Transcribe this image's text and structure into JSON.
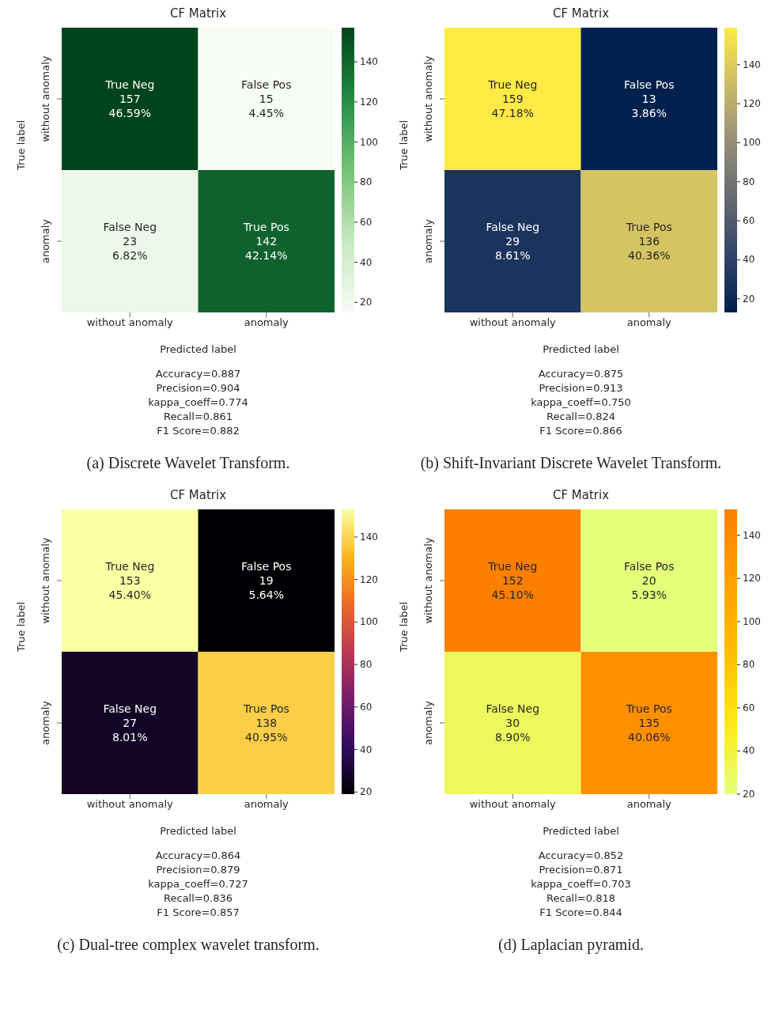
{
  "chart_data": [
    {
      "type": "heatmap",
      "title": "CF Matrix",
      "xlabel": "Predicted label",
      "ylabel": "True label",
      "categories": [
        "without anomaly",
        "anomaly"
      ],
      "y_categories": [
        "without anomaly",
        "anomaly"
      ],
      "cells": [
        [
          157,
          15
        ],
        [
          23,
          142
        ]
      ],
      "cell_labels": [
        [
          "True Neg\n157\n46.59%",
          "False Pos\n15\n4.45%"
        ],
        [
          "False Neg\n23\n6.82%",
          "True Pos\n142\n42.14%"
        ]
      ],
      "clim": [
        15,
        157
      ],
      "cticks": [
        20,
        40,
        60,
        80,
        100,
        120,
        140
      ],
      "colors": [
        "#f7fcf5",
        "#c7e9c0",
        "#74c476",
        "#238b45",
        "#00441b"
      ],
      "annotations": [
        "Accuracy=0.887",
        "Precision=0.904",
        "kappa_coeff=0.774",
        "Recall=0.861",
        "F1 Score=0.882",
        "(a) Discrete Wavelet Transform."
      ]
    },
    {
      "type": "heatmap",
      "title": "CF Matrix",
      "xlabel": "Predicted label",
      "ylabel": "True label",
      "categories": [
        "without anomaly",
        "anomaly"
      ],
      "y_categories": [
        "without anomaly",
        "anomaly"
      ],
      "cells": [
        [
          159,
          13
        ],
        [
          29,
          136
        ]
      ],
      "cell_labels": [
        [
          "True Neg\n159\n47.18%",
          "False Pos\n13\n3.86%"
        ],
        [
          "False Neg\n29\n8.61%",
          "True Pos\n136\n40.36%"
        ]
      ],
      "clim": [
        13,
        159
      ],
      "cticks": [
        20,
        40,
        60,
        80,
        100,
        120,
        140
      ],
      "colors": [
        "#00204d",
        "#31446b",
        "#666970",
        "#958f78",
        "#cbba69",
        "#ffea46"
      ],
      "annotations": [
        "Accuracy=0.875",
        "Precision=0.913",
        "kappa_coeff=0.750",
        "Recall=0.824",
        "F1 Score=0.866",
        "(b) Shift-Invariant Discrete Wavelet Transform."
      ]
    },
    {
      "type": "heatmap",
      "title": "CF Matrix",
      "xlabel": "Predicted label",
      "ylabel": "True label",
      "categories": [
        "without anomaly",
        "anomaly"
      ],
      "y_categories": [
        "without anomaly",
        "anomaly"
      ],
      "cells": [
        [
          153,
          19
        ],
        [
          27,
          138
        ]
      ],
      "cell_labels": [
        [
          "True Neg\n153\n45.40%",
          "False Pos\n19\n5.64%"
        ],
        [
          "False Neg\n27\n8.01%",
          "True Pos\n138\n40.95%"
        ]
      ],
      "clim": [
        19,
        153
      ],
      "cticks": [
        20,
        40,
        60,
        80,
        100,
        120,
        140
      ],
      "colors": [
        "#000004",
        "#320a5e",
        "#781c6d",
        "#bc3754",
        "#ed6925",
        "#fbb61a",
        "#fcffa4"
      ],
      "annotations": [
        "Accuracy=0.864",
        "Precision=0.879",
        "kappa_coeff=0.727",
        "Recall=0.836",
        "F1 Score=0.857",
        "(c) Dual-tree complex wavelet transform."
      ]
    },
    {
      "type": "heatmap",
      "title": "CF Matrix",
      "xlabel": "Predicted label",
      "ylabel": "True label",
      "categories": [
        "without anomaly",
        "anomaly"
      ],
      "y_categories": [
        "without anomaly",
        "anomaly"
      ],
      "cells": [
        [
          152,
          20
        ],
        [
          30,
          135
        ]
      ],
      "cell_labels": [
        [
          "True Neg\n152\n45.10%",
          "False Pos\n20\n5.93%"
        ],
        [
          "False Neg\n30\n8.90%",
          "True Pos\n135\n40.06%"
        ]
      ],
      "clim": [
        20,
        152
      ],
      "cticks": [
        20,
        40,
        60,
        80,
        100,
        120,
        140
      ],
      "colors": [
        "#e4ff7a",
        "#ffe81a",
        "#ffbd00",
        "#ffa000",
        "#fc7f00"
      ],
      "annotations": [
        "Accuracy=0.852",
        "Precision=0.871",
        "kappa_coeff=0.703",
        "Recall=0.818",
        "F1 Score=0.844",
        "(d) Laplacian pyramid."
      ]
    }
  ]
}
